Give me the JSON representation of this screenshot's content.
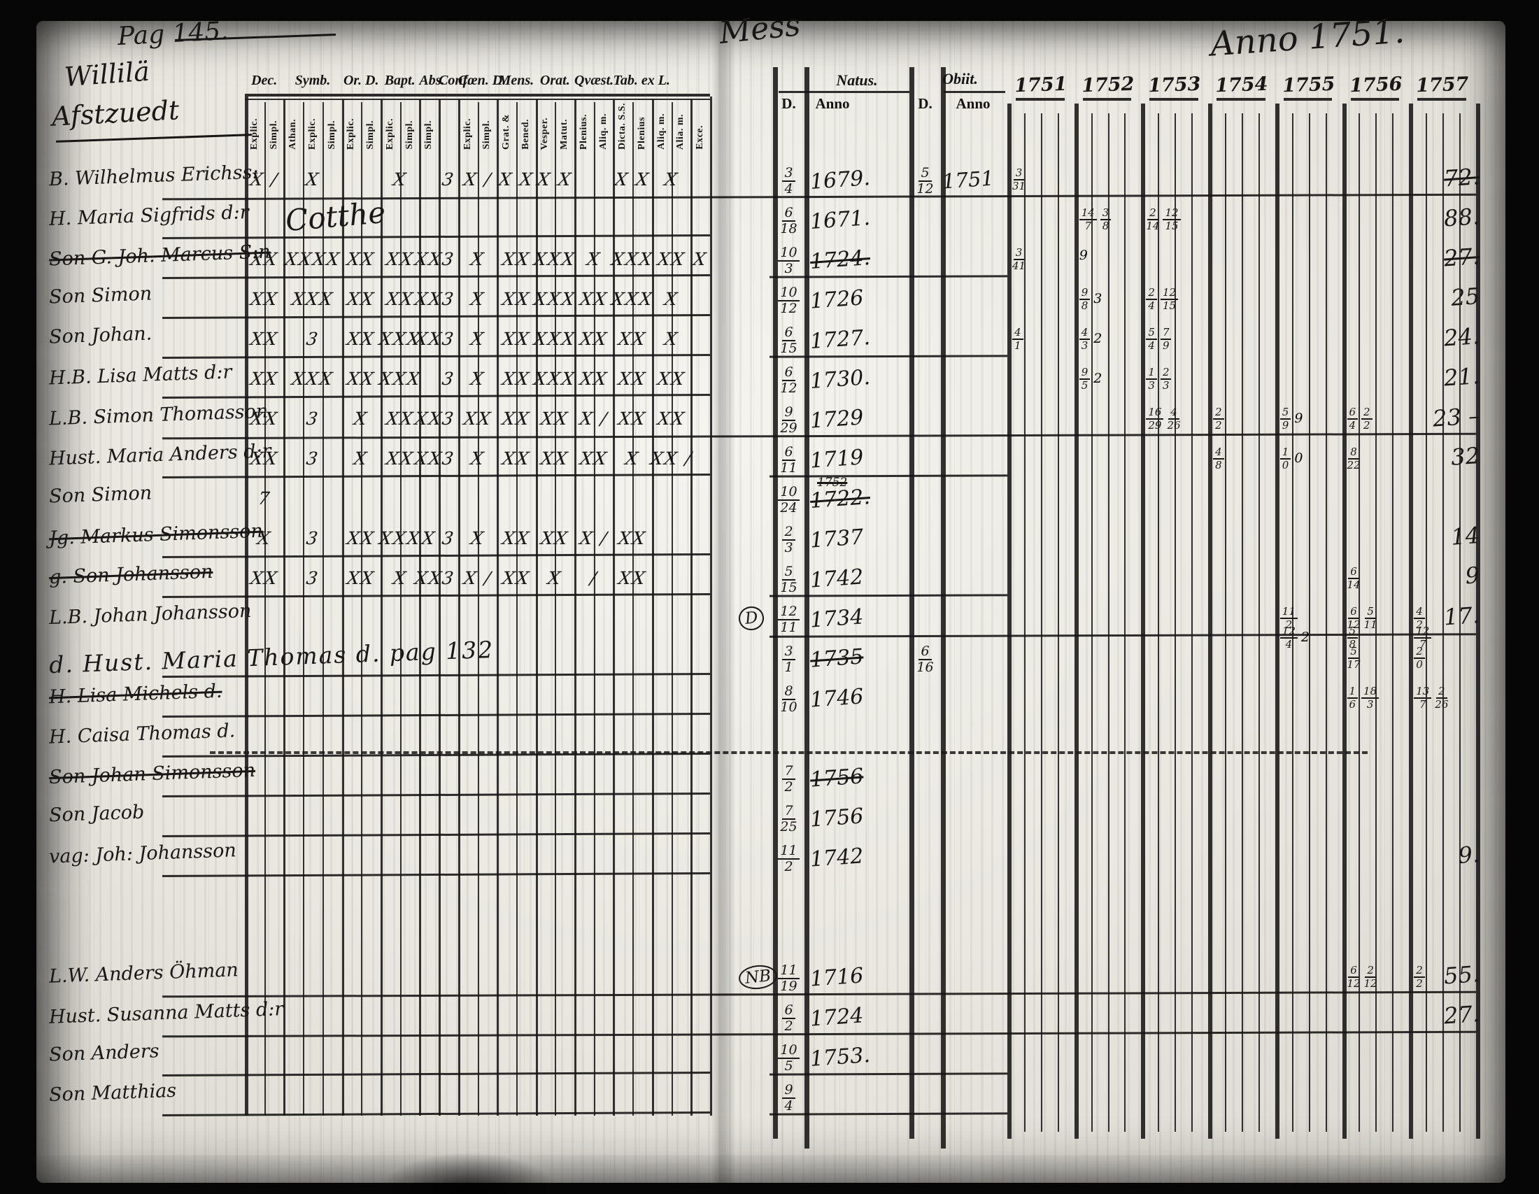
{
  "annotations": {
    "pag": "Pag 145.",
    "village": "Willilä",
    "farm": "Afstzuedt",
    "center_script": "Mess",
    "anno": "Anno 1751."
  },
  "left_header": {
    "groups": [
      {
        "label": "Dec.",
        "subs": [
          "Explic.",
          "Simpl."
        ]
      },
      {
        "label": "Symb.",
        "subs": [
          "Athan.",
          "Explic.",
          "Simpl."
        ]
      },
      {
        "label": "Or. D.",
        "subs": [
          "Explic.",
          "Simpl."
        ]
      },
      {
        "label": "Bapt.",
        "subs": [
          "Explic.",
          "Simpl."
        ]
      },
      {
        "label": "Abs.",
        "subs": [
          "Simpl."
        ]
      },
      {
        "label": "Conf.",
        "subs": [
          ""
        ]
      },
      {
        "label": "Cœn. D.",
        "subs": [
          "Explic.",
          "Simpl."
        ]
      },
      {
        "label": "Mens.",
        "subs": [
          "Grat. &",
          "Bened."
        ]
      },
      {
        "label": "Orat.",
        "subs": [
          "Vesper.",
          "Matut."
        ]
      },
      {
        "label": "Qvæst.",
        "subs": [
          "Plenius.",
          "Aliq. m."
        ]
      },
      {
        "label": "Tab. ex L.",
        "subs": [
          "Dicta. S.S.",
          "Plenius"
        ]
      },
      {
        "label": "",
        "subs": [
          "Aliq. m.",
          "Alia. m."
        ]
      },
      {
        "label": "",
        "subs": [
          "Exce."
        ]
      }
    ]
  },
  "right_header": {
    "natus": "Natus.",
    "obiit": "Obiit.",
    "d_label": "D.",
    "anno_label": "Anno",
    "years": [
      "1751",
      "1752",
      "1753",
      "1754",
      "1755",
      "1756",
      "1757"
    ]
  },
  "rows": [
    {
      "name": "B. Wilhelmus Erichss:",
      "rule_left": true,
      "rule_right": "long",
      "marks": [
        "X /",
        "X",
        "",
        "X",
        "",
        "3",
        "X /",
        "X X",
        "X X",
        "",
        "X X",
        "X",
        ""
      ],
      "natus_d": "3/4",
      "natus_y": "1679.",
      "obiit_d": "5/12",
      "obiit_y": "1751",
      "age": "72.",
      "age_struck": true,
      "year_notes": {
        "1751": "3/31"
      }
    },
    {
      "name": "H. Maria Sigfrids d:r",
      "note": "Cotthe",
      "rule_left": true,
      "natus_d": "6/18",
      "natus_y": "1671.",
      "age": "88.",
      "year_notes": {
        "1752": "14/7 3/8",
        "1753": "2/14 12/15"
      }
    },
    {
      "name": "Son G. Joh. Marcus S:n",
      "struck": true,
      "rule_left": true,
      "rule_right": "short",
      "marks": [
        "XX",
        "XXXX",
        "XX",
        "XX",
        "XX",
        "3",
        "X",
        "XX",
        "XXX",
        "X",
        "XXX",
        "XX",
        "X"
      ],
      "natus_d": "10/3",
      "natus_y": "1724.",
      "natus_struck": true,
      "age": "27.",
      "age_struck": true,
      "year_notes": {
        "1751": "3/41",
        "1752": "9"
      }
    },
    {
      "name": "Son Simon",
      "rule_left": true,
      "marks": [
        "XX",
        "XXX",
        "XX",
        "XX",
        "XX",
        "3",
        "X",
        "XX",
        "XXX",
        "XX",
        "XXX",
        "X",
        ""
      ],
      "natus_d": "10/12",
      "natus_y": "1726",
      "age": "25",
      "year_notes": {
        "1752": "9/8 3",
        "1753": "2/4 12/15"
      }
    },
    {
      "name": "Son Johan.",
      "rule_left": true,
      "rule_right": "short",
      "marks": [
        "XX",
        "3",
        "XX",
        "XXX",
        "XX",
        "3",
        "X",
        "XX",
        "XXX",
        "XX",
        "XX",
        "X",
        ""
      ],
      "natus_d": "6/15",
      "natus_y": "1727.",
      "age": "24.",
      "year_notes": {
        "1751": "4/1",
        "1752": "4/3 2",
        "1753": "5/4 7/9"
      }
    },
    {
      "name": "H.B. Lisa Matts d:r",
      "rule_left": true,
      "marks": [
        "XX",
        "XXX",
        "XX",
        "XXX",
        "",
        "3",
        "X",
        "XX",
        "XXX",
        "XX",
        "XX",
        "XX",
        ""
      ],
      "natus_d": "6/12",
      "natus_y": "1730.",
      "age": "21.",
      "year_notes": {
        "1752": "9/5 2",
        "1753": "1/3 2/3"
      }
    },
    {
      "name": "L.B. Simon Thomasson",
      "rule_left": true,
      "rule_right": "long",
      "marks": [
        "XX",
        "3",
        "X",
        "XX",
        "XX",
        "3",
        "XX",
        "XX",
        "XX",
        "X /",
        "XX",
        "XX",
        ""
      ],
      "natus_d": "9/29",
      "natus_y": "1729",
      "age": "23 –",
      "year_notes": {
        "1753": "16/29 4/26",
        "1754": "2/2",
        "1755": "5/9 9",
        "1756": "6/4 2/2"
      }
    },
    {
      "name": "Hust. Maria Anders d:r",
      "rule_left": true,
      "rule_right": "short",
      "marks": [
        "XX",
        "3",
        "X",
        "XX",
        "XX",
        "3",
        "X",
        "XX",
        "XX",
        "XX",
        "X",
        "XX /",
        ""
      ],
      "natus_d": "6/11",
      "natus_y": "1719",
      "age": "32",
      "year_notes": {
        "1754": "4/8",
        "1755": "1/0 0",
        "1756": "8/22"
      }
    },
    {
      "name": "Son Simon",
      "marks": [
        "7",
        "",
        "",
        "",
        "",
        "",
        "",
        "",
        "",
        "",
        "",
        "",
        ""
      ],
      "natus_d": "10/24",
      "natus_y": "1722.",
      "natus_struck": true,
      "natus_note": "1752"
    },
    {
      "name": "Jg. Markus Simonsson",
      "struck": true,
      "rule_left": true,
      "marks": [
        "X",
        "3",
        "XX",
        "XXX",
        "X",
        "3",
        "X",
        "XX",
        "XX",
        "X /",
        "XX",
        "",
        ""
      ],
      "natus_d": "2/3",
      "natus_y": "1737",
      "age": "14"
    },
    {
      "name": "g. Son Johansson",
      "struck": true,
      "rule_left": true,
      "rule_right": "short",
      "marks": [
        "XX",
        "3",
        "XX",
        "X",
        "XX",
        "3",
        "X /",
        "XX",
        "X",
        "/",
        "XX",
        "",
        ""
      ],
      "natus_d": "5/15",
      "natus_y": "1742",
      "age": "9",
      "year_notes": {
        "1756": "6/14"
      }
    },
    {
      "name": "L.B. Johan Johansson",
      "circled": "D",
      "rule_right": "long",
      "natus_d": "12/11",
      "natus_y": "1734",
      "age": "17.",
      "year_notes": {
        "1755": "11/2",
        "1756": "6/12 5/11",
        "1757": "4/2"
      },
      "year_notes2": {
        "1755": "12/4 2",
        "1756": "5/8",
        "1757": "12/7"
      }
    },
    {
      "name": "d. Hust. Maria Thomas d. pag 132",
      "big": true,
      "rule_left": true,
      "natus_d": "3/1",
      "natus_y": "1735",
      "natus_struck": true,
      "obiit_d": "6/16",
      "year_notes": {
        "1756": "5/17",
        "1757": "2/0"
      }
    },
    {
      "name": "H. Lisa Michels d.",
      "struck": true,
      "rule_left": true,
      "natus_d": "8/10",
      "natus_y": "1746",
      "year_notes": {
        "1756": "1/6 18/3",
        "1757": "13/7 2/26"
      }
    },
    {
      "name": "H. Caisa Thomas d.",
      "rule_left": true,
      "dashed": true
    },
    {
      "name": "Son Johan Simonsson",
      "struck": true,
      "rule_left": true,
      "natus_d": "7/2",
      "natus_y": "1756",
      "natus_struck": true
    },
    {
      "name": "Son Jacob",
      "rule_left": true,
      "natus_d": "7/25",
      "natus_y": "1756"
    },
    {
      "name": "vag: Joh: Johansson",
      "rule_left": true,
      "natus_d": "11/2",
      "natus_y": "1742",
      "age": "9."
    },
    {
      "name": ""
    },
    {
      "name": ""
    },
    {
      "name": "L.W. Anders Öhman",
      "circled": "NB",
      "rule_left": true,
      "rule_right": "long",
      "natus_d": "11/19",
      "natus_y": "1716",
      "age": "55.",
      "year_notes": {
        "1756": "6/12 2/12",
        "1757": "2/2"
      }
    },
    {
      "name": "Hust. Susanna Matts d:r",
      "rule_left": true,
      "rule_right": "long",
      "natus_d": "6/2",
      "natus_y": "1724",
      "age": "27."
    },
    {
      "name": "Son Anders",
      "rule_left": true,
      "rule_right": "short",
      "natus_d": "10/5",
      "natus_y": "1753."
    },
    {
      "name": "Son Matthias",
      "rule_left": true,
      "rule_right": "short",
      "natus_d": "9/4",
      "natus_y": ""
    }
  ]
}
